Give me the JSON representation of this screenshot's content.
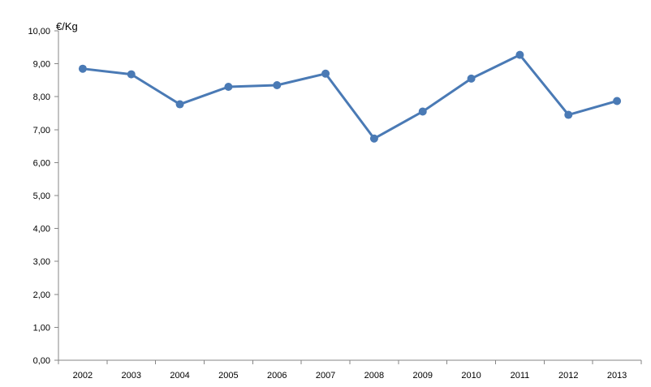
{
  "chart_data": {
    "type": "line",
    "ylabel": "€/Kg",
    "ylim": [
      0,
      10
    ],
    "y_ticks": [
      "0,00",
      "1,00",
      "2,00",
      "3,00",
      "4,00",
      "5,00",
      "6,00",
      "7,00",
      "8,00",
      "9,00",
      "10,00"
    ],
    "categories": [
      "2002",
      "2003",
      "2004",
      "2005",
      "2006",
      "2007",
      "2008",
      "2009",
      "2010",
      "2011",
      "2012",
      "2013"
    ],
    "series": [
      {
        "values": [
          8.85,
          8.68,
          7.77,
          8.3,
          8.35,
          8.7,
          6.73,
          7.55,
          8.55,
          9.27,
          7.45,
          7.87
        ],
        "color": "#4a7ab5"
      }
    ],
    "grid": false,
    "legend": "none"
  }
}
